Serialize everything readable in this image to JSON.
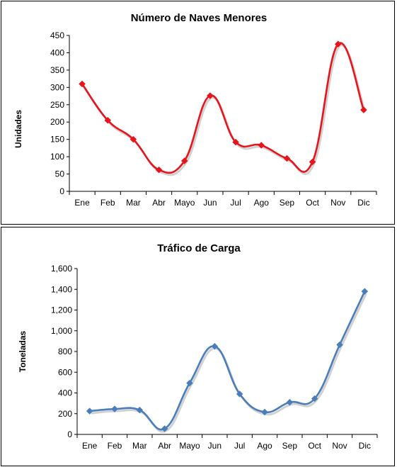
{
  "chart_data": [
    {
      "type": "line",
      "title": "Número de Naves Menores",
      "xlabel": "",
      "ylabel": "Unidades",
      "categories": [
        "Ene",
        "Feb",
        "Mar",
        "Abr",
        "Mayo",
        "Jun",
        "Jul",
        "Ago",
        "Sep",
        "Oct",
        "Nov",
        "Dic"
      ],
      "series": [
        {
          "values": [
            310,
            205,
            150,
            62,
            88,
            276,
            142,
            133,
            95,
            85,
            425,
            235
          ],
          "color": "#e8141c"
        }
      ],
      "ylim": [
        0,
        450
      ],
      "yticks": [
        "0",
        "50",
        "100",
        "150",
        "200",
        "250",
        "300",
        "350",
        "400",
        "450"
      ],
      "grid": false,
      "legend": "none"
    },
    {
      "type": "line",
      "title": "Tráfico de Carga",
      "xlabel": "",
      "ylabel": "Toneladas",
      "categories": [
        "Ene",
        "Feb",
        "Mar",
        "Abr",
        "Mayo",
        "Jun",
        "Jul",
        "Ago",
        "Sep",
        "Oct",
        "Nov",
        "Dic"
      ],
      "series": [
        {
          "values": [
            225,
            245,
            235,
            55,
            495,
            850,
            390,
            215,
            310,
            345,
            865,
            1380
          ],
          "color": "#4a7ebb"
        }
      ],
      "ylim": [
        0,
        1600
      ],
      "yticks": [
        "0",
        "200",
        "400",
        "600",
        "800",
        "1,000",
        "1,200",
        "1,400",
        "1,600"
      ],
      "grid": false,
      "legend": "none"
    }
  ]
}
